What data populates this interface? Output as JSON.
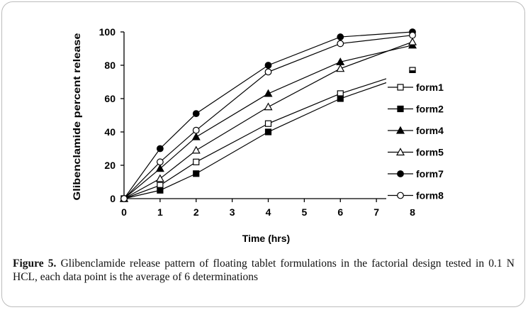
{
  "chart_data": {
    "type": "line",
    "xlabel": "Time (hrs)",
    "ylabel": "Glibenclamide percent release",
    "x": [
      0,
      1,
      2,
      4,
      6,
      8
    ],
    "xlim": [
      0,
      8
    ],
    "ylim": [
      0,
      100
    ],
    "xticks": [
      "0",
      "1",
      "2",
      "3",
      "4",
      "5",
      "6",
      "7",
      "8"
    ],
    "yticks": [
      "0",
      "20",
      "40",
      "60",
      "80",
      "100"
    ],
    "grid": false,
    "legend": "right",
    "series": [
      {
        "name": "form1",
        "marker": "square-open",
        "values": [
          0,
          8,
          22,
          45,
          63,
          77
        ]
      },
      {
        "name": "form2",
        "marker": "square-filled",
        "values": [
          0,
          5,
          15,
          40,
          60,
          75
        ]
      },
      {
        "name": "form4",
        "marker": "triangle-filled",
        "values": [
          0,
          18,
          37,
          63,
          82,
          92
        ]
      },
      {
        "name": "form5",
        "marker": "triangle-open",
        "values": [
          0,
          12,
          29,
          55,
          78,
          94
        ]
      },
      {
        "name": "form7",
        "marker": "circle-filled",
        "values": [
          0,
          30,
          51,
          80,
          97,
          100
        ]
      },
      {
        "name": "form8",
        "marker": "circle-open",
        "values": [
          0,
          22,
          41,
          76,
          93,
          98
        ]
      }
    ]
  },
  "caption": {
    "label": "Figure 5.",
    "text": " Glibenclamide release pattern of floating tablet formulations in the factorial design tested in 0.1 N HCL, each data point is the average of 6 determinations"
  }
}
